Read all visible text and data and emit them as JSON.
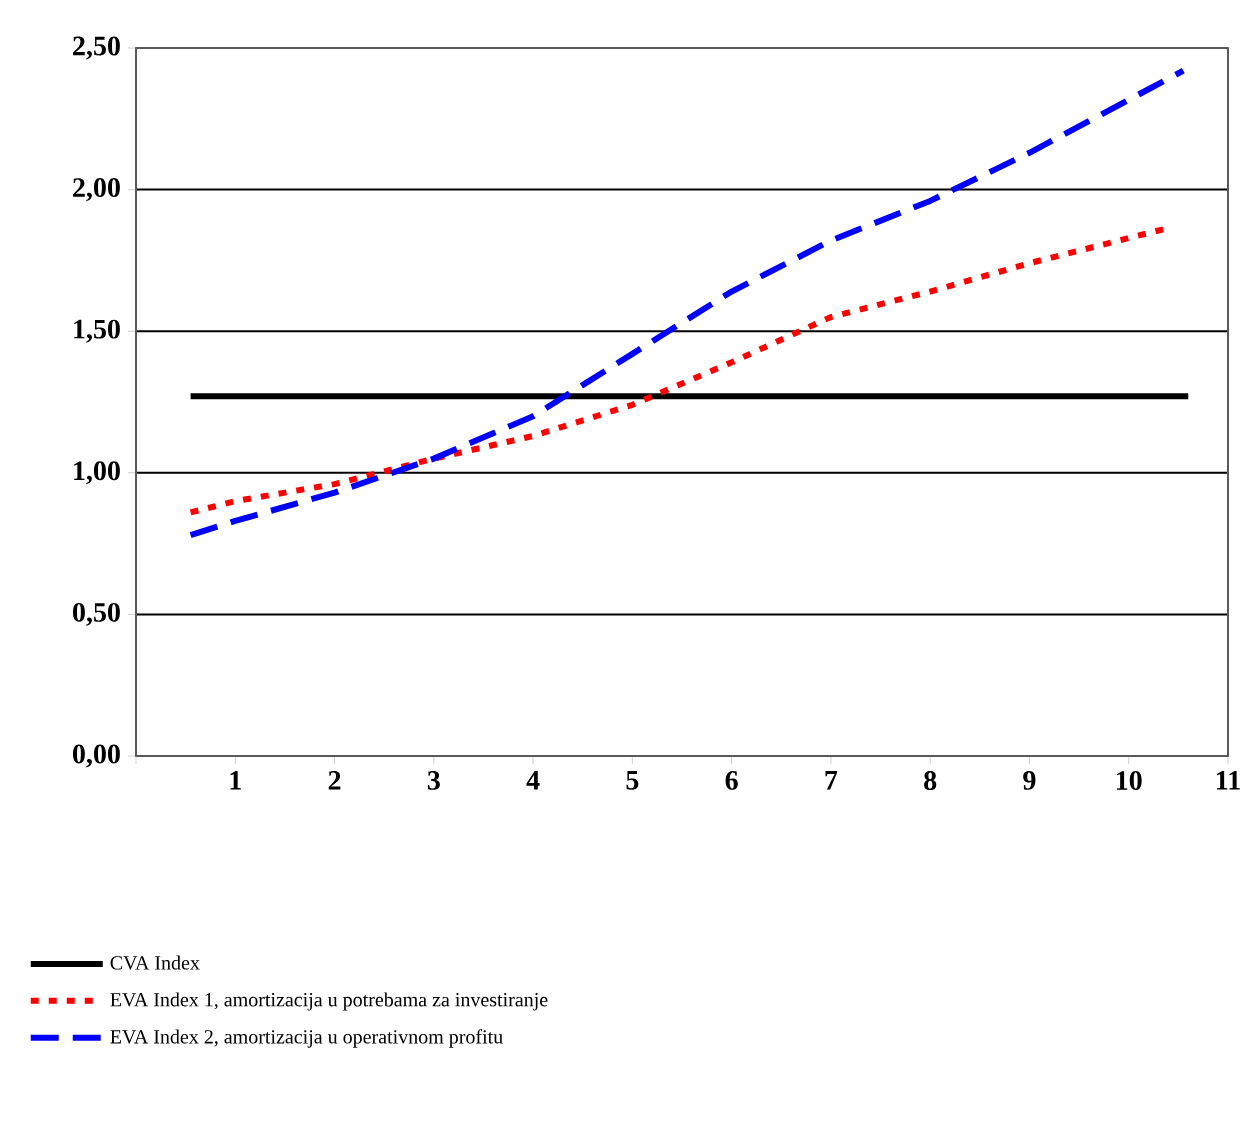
{
  "chart_data": {
    "type": "line",
    "xlim": [
      0,
      11
    ],
    "ylim": [
      0,
      2.5
    ],
    "xticks": [
      {
        "value": 0,
        "label": null
      },
      1,
      2,
      3,
      4,
      5,
      6,
      7,
      8,
      9,
      10,
      11
    ],
    "yticks": [
      {
        "value": 0,
        "label": "0,00"
      },
      {
        "value": 0.5,
        "label": "0,50"
      },
      {
        "value": 1,
        "label": "1,00"
      },
      {
        "value": 1.5,
        "label": "1,50"
      },
      {
        "value": 2,
        "label": "2,00"
      },
      {
        "value": 2.5,
        "label": "2,50"
      }
    ],
    "grid": "y",
    "legend": "bottom",
    "series": [
      {
        "name": "CVA Index",
        "color": "#000000",
        "line_style": "solid",
        "x": [
          0.55,
          10.6
        ],
        "values": [
          1.27,
          1.27
        ]
      },
      {
        "name": "EVA Index 1, amortizacija u potrebama za investiranje",
        "color": "#ff0000",
        "line_style": "dotted",
        "x": [
          0.55,
          1,
          2,
          3,
          4,
          5,
          6,
          7,
          8,
          9,
          10.35
        ],
        "values": [
          0.86,
          0.9,
          0.96,
          1.05,
          1.13,
          1.24,
          1.39,
          1.55,
          1.64,
          1.74,
          1.86
        ]
      },
      {
        "name": "EVA Index 2, amortizacija u operativnom profitu",
        "color": "#0000ff",
        "line_style": "dashed",
        "x": [
          0.55,
          1,
          2,
          3,
          4,
          5,
          6,
          7,
          8,
          9,
          10.55
        ],
        "values": [
          0.78,
          0.83,
          0.93,
          1.05,
          1.2,
          1.42,
          1.64,
          1.82,
          1.96,
          2.13,
          2.42
        ]
      }
    ]
  }
}
